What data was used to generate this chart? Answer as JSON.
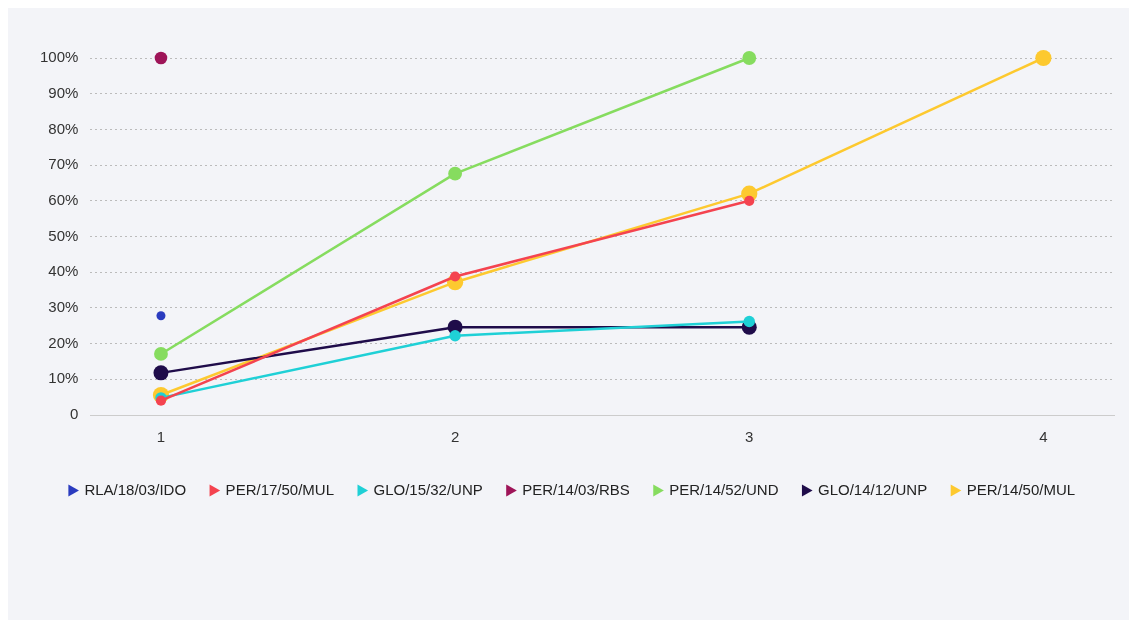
{
  "chart_data": {
    "type": "line",
    "x": [
      1,
      2,
      3,
      4
    ],
    "series": [
      {
        "name": "RLA/18/03/IDO",
        "color": "#2a3bbf",
        "values": [
          27.8,
          null,
          null,
          null
        ]
      },
      {
        "name": "PER/17/50/MUL",
        "color": "#f4434f",
        "values": [
          4,
          38.8,
          60,
          null
        ]
      },
      {
        "name": "GLO/15/32/UNP",
        "color": "#1fd0d6",
        "values": [
          4.8,
          22.2,
          26.2,
          null
        ]
      },
      {
        "name": "PER/14/03/RBS",
        "color": "#9e1458",
        "values": [
          100,
          null,
          null,
          null
        ]
      },
      {
        "name": "PER/14/52/UND",
        "color": "#86dc5f",
        "values": [
          17.1,
          67.6,
          100,
          null
        ]
      },
      {
        "name": "GLO/14/12/UNP",
        "color": "#1f0c4a",
        "values": [
          11.8,
          24.6,
          24.6,
          null
        ]
      },
      {
        "name": "PER/14/50/MUL",
        "color": "#fdc92f",
        "values": [
          5.6,
          37.2,
          62,
          100
        ]
      }
    ],
    "xlim": [
      0.76,
      4.24
    ],
    "xticks": [
      1,
      2,
      3,
      4
    ],
    "ylim": [
      0,
      100
    ],
    "yticks": [
      0,
      {
        "value": 10,
        "label": "10%"
      },
      {
        "value": 20,
        "label": "20%"
      },
      {
        "value": 30,
        "label": "30%"
      },
      {
        "value": 40,
        "label": "40%"
      },
      {
        "value": 50,
        "label": "50%"
      },
      {
        "value": 60,
        "label": "60%"
      },
      {
        "value": 70,
        "label": "70%"
      },
      {
        "value": 80,
        "label": "80%"
      },
      {
        "value": 90,
        "label": "90%"
      },
      {
        "value": 100,
        "label": "100%"
      }
    ],
    "grid": "y",
    "legend": "bottom",
    "marker": "circle",
    "line_style": "solid"
  }
}
